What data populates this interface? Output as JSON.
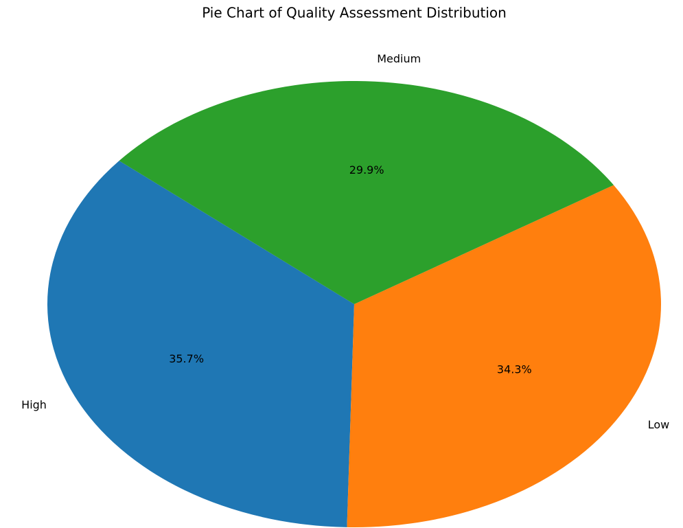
{
  "chart_data": {
    "type": "pie",
    "title": "Pie Chart of Quality Assessment Distribution",
    "categories": [
      "High",
      "Low",
      "Medium"
    ],
    "values": [
      35.7,
      34.3,
      29.9
    ],
    "value_labels": [
      "35.7%",
      "34.3%",
      "29.9%"
    ],
    "colors": [
      "#1f77b4",
      "#ff7f0e",
      "#2ca02c"
    ]
  }
}
